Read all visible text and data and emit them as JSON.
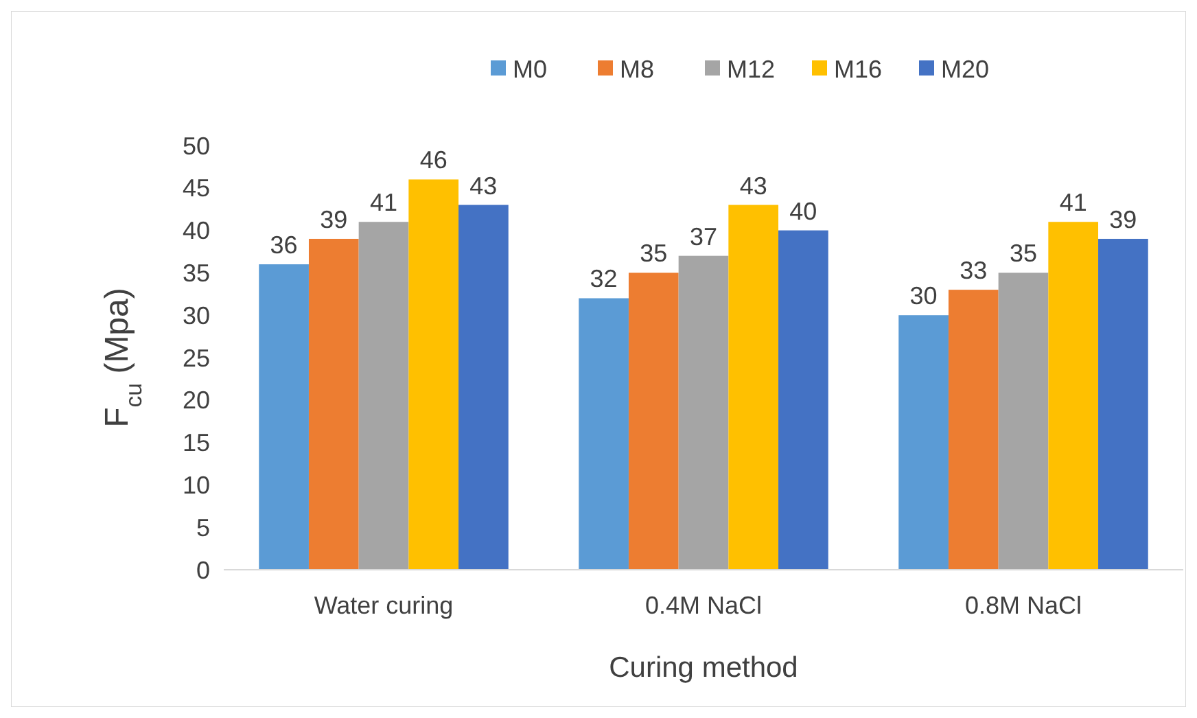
{
  "chart_data": {
    "type": "bar",
    "xlabel": "Curing method",
    "ylabel": "F$_{cu}$ (Mpa)",
    "categories": [
      "Water curing",
      "0.4M NaCl",
      "0.8M NaCl"
    ],
    "series": [
      {
        "name": "M0",
        "color": "#5b9bd5",
        "values": [
          36,
          32,
          30
        ]
      },
      {
        "name": "M8",
        "color": "#ed7d31",
        "values": [
          39,
          35,
          33
        ]
      },
      {
        "name": "M12",
        "color": "#a5a5a5",
        "values": [
          41,
          37,
          35
        ]
      },
      {
        "name": "M16",
        "color": "#ffc000",
        "values": [
          46,
          43,
          41
        ]
      },
      {
        "name": "M20",
        "color": "#4472c4",
        "values": [
          43,
          40,
          39
        ]
      }
    ],
    "ylim": [
      0,
      50
    ],
    "yticks": [
      0,
      5,
      10,
      15,
      20,
      25,
      30,
      35,
      40,
      45,
      50
    ],
    "data_labels": true,
    "legend": "top",
    "grid": false
  }
}
